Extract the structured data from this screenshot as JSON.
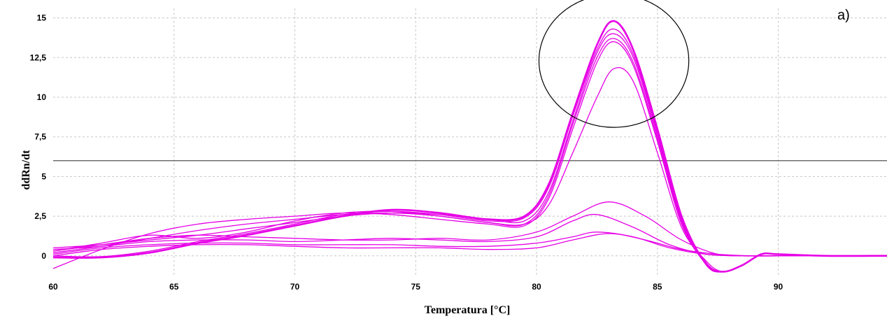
{
  "chart_data": {
    "type": "line",
    "panel_label": "a)",
    "xlabel": "Temperatura [°C]",
    "ylabel": "ddRn/dt",
    "xlim": [
      60,
      94.5
    ],
    "ylim": [
      -1.2,
      15.6
    ],
    "x_ticks": [
      {
        "value": 60,
        "label": "60"
      },
      {
        "value": 65,
        "label": "65"
      },
      {
        "value": 70,
        "label": "70"
      },
      {
        "value": 75,
        "label": "75"
      },
      {
        "value": 80,
        "label": "80"
      },
      {
        "value": 85,
        "label": "85"
      },
      {
        "value": 90,
        "label": "90"
      }
    ],
    "y_ticks": [
      {
        "value": 0,
        "label": "0"
      },
      {
        "value": 2.5,
        "label": "2,5"
      },
      {
        "value": 5,
        "label": "5"
      },
      {
        "value": 7.5,
        "label": "7,5"
      },
      {
        "value": 10,
        "label": "10"
      },
      {
        "value": 12.5,
        "label": "12,5"
      },
      {
        "value": 15,
        "label": "15"
      }
    ],
    "grid": true,
    "threshold": 6,
    "annotation": {
      "shape": "circle",
      "center": [
        83.2,
        12.3
      ],
      "radius_x": 3.1,
      "radius_y": 4.2
    },
    "colors": {
      "series": "#e600e6",
      "threshold": "#555555",
      "grid": "#c8c8c8",
      "annotation": "#000000"
    },
    "series": [
      {
        "x": [
          60,
          62,
          64,
          66,
          68,
          70,
          72,
          74,
          76,
          78,
          79.5,
          80.5,
          81.5,
          82.5,
          83.2,
          84,
          85,
          86,
          87,
          87.7,
          88.5,
          89.3,
          90,
          92,
          94.5
        ],
        "y": [
          -0.1,
          -0.1,
          0.2,
          0.8,
          1.3,
          1.9,
          2.5,
          2.9,
          2.7,
          2.3,
          2.5,
          4.5,
          9.0,
          13.3,
          14.8,
          13.0,
          8.0,
          2.5,
          -0.5,
          -1.0,
          -0.6,
          0.1,
          0.1,
          0.0,
          0.0
        ]
      },
      {
        "x": [
          60,
          62,
          64,
          66,
          68,
          70,
          72,
          74,
          76,
          78,
          79.5,
          80.5,
          81.5,
          82.5,
          83.2,
          84,
          85,
          86,
          87,
          87.7,
          88.5,
          89.3,
          90,
          92,
          94.5
        ],
        "y": [
          0.0,
          -0.05,
          0.3,
          0.9,
          1.4,
          2.0,
          2.6,
          2.8,
          2.6,
          2.2,
          2.4,
          4.3,
          8.8,
          13.0,
          14.3,
          12.7,
          7.8,
          2.3,
          -0.4,
          -1.0,
          -0.6,
          0.1,
          0.1,
          0.0,
          0.0
        ]
      },
      {
        "x": [
          60,
          62,
          64,
          66,
          68,
          70,
          72,
          74,
          76,
          78,
          79.5,
          80.5,
          81.5,
          82.5,
          83.2,
          84,
          85,
          86,
          87,
          87.7,
          88.5,
          89.3,
          90,
          92,
          94.5
        ],
        "y": [
          0.5,
          0.7,
          1.0,
          1.3,
          1.7,
          2.1,
          2.5,
          2.7,
          2.6,
          2.3,
          2.2,
          4.0,
          8.5,
          12.8,
          14.0,
          12.5,
          7.6,
          2.2,
          -0.5,
          -1.0,
          -0.6,
          0.1,
          0.1,
          0.0,
          0.0
        ]
      },
      {
        "x": [
          60,
          62,
          64,
          66,
          68,
          70,
          72,
          74,
          76,
          78,
          79.5,
          80.5,
          81.5,
          82.5,
          83.2,
          84,
          85,
          86,
          87,
          87.7,
          88.5,
          89.3,
          90,
          92,
          94.5
        ],
        "y": [
          0.3,
          0.8,
          1.3,
          1.1,
          1.5,
          2.2,
          2.7,
          2.8,
          2.5,
          2.1,
          2.0,
          3.8,
          8.3,
          12.5,
          13.7,
          12.2,
          7.4,
          2.1,
          -0.5,
          -1.0,
          -0.6,
          0.1,
          0.1,
          0.0,
          0.0
        ]
      },
      {
        "x": [
          60,
          62,
          64,
          66,
          68,
          70,
          72,
          74,
          76,
          78,
          79.5,
          80.5,
          81.5,
          82.5,
          83.2,
          84,
          85,
          86,
          87,
          87.7,
          88.5,
          89.3,
          90,
          92,
          94.5
        ],
        "y": [
          -0.8,
          0.4,
          1.4,
          2.0,
          2.3,
          2.5,
          2.7,
          2.6,
          2.3,
          2.0,
          1.9,
          3.6,
          8.0,
          12.2,
          13.5,
          12.0,
          7.2,
          2.0,
          -0.5,
          -1.0,
          -0.6,
          0.1,
          0.1,
          0.0,
          0.0
        ]
      },
      {
        "x": [
          60,
          62,
          64,
          66,
          68,
          70,
          72,
          74,
          76,
          78,
          79.5,
          80.5,
          81.5,
          82.5,
          83.2,
          84,
          85,
          86,
          87,
          87.7,
          88.5,
          89.3,
          90,
          92,
          94.5
        ],
        "y": [
          0.2,
          0.6,
          1.1,
          1.6,
          2.0,
          2.3,
          2.6,
          2.7,
          2.5,
          2.1,
          2.0,
          3.2,
          6.5,
          10.0,
          11.8,
          11.0,
          6.5,
          1.8,
          -0.3,
          -1.0,
          -0.6,
          0.1,
          0.1,
          0.0,
          0.0
        ]
      },
      {
        "x": [
          60,
          62,
          64,
          66,
          68,
          70,
          72,
          74,
          76,
          78,
          80,
          81.5,
          83,
          84.5,
          86,
          87.5,
          89,
          90,
          94.5
        ],
        "y": [
          0.3,
          0.7,
          1.1,
          1.3,
          1.2,
          1.1,
          1.0,
          1.0,
          1.1,
          1.0,
          1.5,
          2.5,
          3.4,
          2.5,
          1.0,
          0.1,
          0.0,
          0.0,
          0.0
        ]
      },
      {
        "x": [
          60,
          62,
          64,
          66,
          68,
          70,
          72,
          74,
          76,
          78,
          80,
          81.5,
          82.5,
          84,
          85.5,
          87,
          88.5,
          90,
          94.5
        ],
        "y": [
          0.4,
          0.6,
          0.9,
          1.0,
          1.0,
          0.9,
          1.0,
          1.1,
          1.0,
          0.9,
          1.2,
          2.2,
          2.6,
          1.8,
          0.7,
          0.1,
          0.0,
          0.0,
          0.0
        ]
      },
      {
        "x": [
          60,
          62,
          64,
          66,
          68,
          70,
          72,
          74,
          76,
          78,
          80,
          81.5,
          82.5,
          84,
          85.5,
          87,
          88.5,
          90,
          94.5
        ],
        "y": [
          0.1,
          0.5,
          0.7,
          0.8,
          0.8,
          0.7,
          0.7,
          0.7,
          0.6,
          0.6,
          0.8,
          1.2,
          1.5,
          1.2,
          0.5,
          0.1,
          0.0,
          0.0,
          0.0
        ]
      },
      {
        "x": [
          60,
          62,
          64,
          66,
          68,
          70,
          72,
          74,
          76,
          78,
          80,
          81.5,
          83,
          84.5,
          86,
          87.5,
          89,
          90,
          94.5
        ],
        "y": [
          0.0,
          0.4,
          0.6,
          0.7,
          0.7,
          0.6,
          0.5,
          0.5,
          0.5,
          0.4,
          0.5,
          1.0,
          1.4,
          1.0,
          0.4,
          0.1,
          0.0,
          0.0,
          0.0
        ]
      }
    ]
  }
}
